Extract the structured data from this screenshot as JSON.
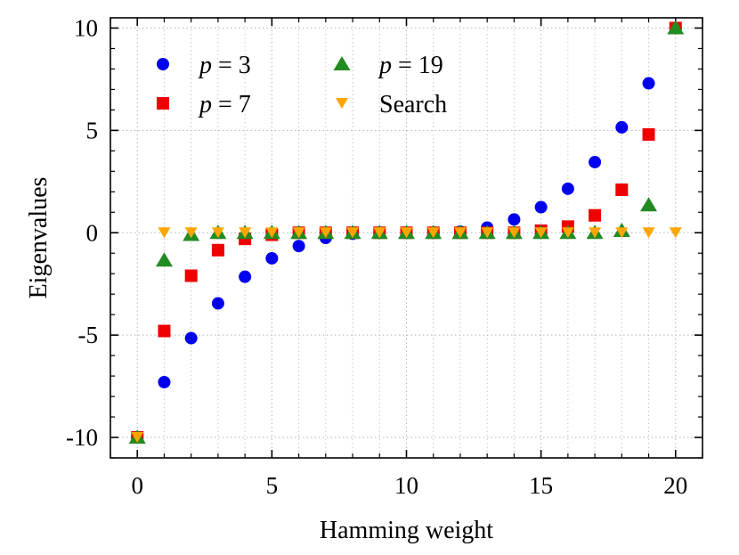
{
  "chart_data": {
    "type": "scatter",
    "title": "",
    "xlabel": "Hamming weight",
    "ylabel": "Eigenvalues",
    "xlim": [
      -1,
      21
    ],
    "ylim": [
      -11,
      10.5
    ],
    "xticks": [
      0,
      5,
      10,
      15,
      20
    ],
    "yticks": [
      -10,
      -5,
      0,
      5,
      10
    ],
    "xtick_labels": [
      "0",
      "5",
      "10",
      "15",
      "20"
    ],
    "ytick_labels": [
      "-10",
      "-5",
      "0",
      "5",
      "10"
    ],
    "grid": true,
    "legend_position": "top-left",
    "series": [
      {
        "name": "p = 3",
        "legend_var": "p",
        "legend_rest": " = 3",
        "marker": "circle",
        "color": "#0000ee",
        "x": [
          0,
          1,
          2,
          3,
          4,
          5,
          6,
          7,
          8,
          9,
          10,
          11,
          12,
          13,
          14,
          15,
          16,
          17,
          18,
          19,
          20
        ],
        "values": [
          -10,
          -7.3,
          -5.15,
          -3.45,
          -2.15,
          -1.25,
          -0.65,
          -0.25,
          -0.05,
          0,
          0,
          0,
          0.05,
          0.25,
          0.65,
          1.25,
          2.15,
          3.45,
          5.15,
          7.3,
          10
        ]
      },
      {
        "name": "p = 7",
        "legend_var": "p",
        "legend_rest": " = 7",
        "marker": "square",
        "color": "#ee0000",
        "x": [
          0,
          1,
          2,
          3,
          4,
          5,
          6,
          7,
          8,
          9,
          10,
          11,
          12,
          13,
          14,
          15,
          16,
          17,
          18,
          19,
          20
        ],
        "values": [
          -10,
          -4.8,
          -2.1,
          -0.85,
          -0.3,
          -0.1,
          0,
          0,
          0,
          0,
          0,
          0,
          0,
          0,
          0,
          0.1,
          0.3,
          0.85,
          2.1,
          4.8,
          10
        ]
      },
      {
        "name": "p = 19",
        "legend_var": "p",
        "legend_rest": " = 19",
        "marker": "triangle-up",
        "color": "#228b22",
        "x": [
          0,
          1,
          2,
          3,
          4,
          5,
          6,
          7,
          8,
          9,
          10,
          11,
          12,
          13,
          14,
          15,
          16,
          17,
          18,
          19,
          20
        ],
        "values": [
          -10,
          -1.35,
          -0.1,
          0,
          0,
          0,
          0,
          0,
          0,
          0,
          0,
          0,
          0,
          0,
          0,
          0,
          0,
          0,
          0.1,
          1.35,
          10
        ]
      },
      {
        "name": "Search",
        "legend_var": "",
        "legend_rest": "Search",
        "marker": "triangle-down",
        "color": "#ffa500",
        "x": [
          0,
          1,
          2,
          3,
          4,
          5,
          6,
          7,
          8,
          9,
          10,
          11,
          12,
          13,
          14,
          15,
          16,
          17,
          18,
          19,
          20
        ],
        "values": [
          -10,
          0,
          0,
          0,
          0,
          0,
          0,
          0,
          0,
          0,
          0,
          0,
          0,
          0,
          0,
          0,
          0,
          0,
          0,
          0,
          0
        ]
      }
    ]
  }
}
